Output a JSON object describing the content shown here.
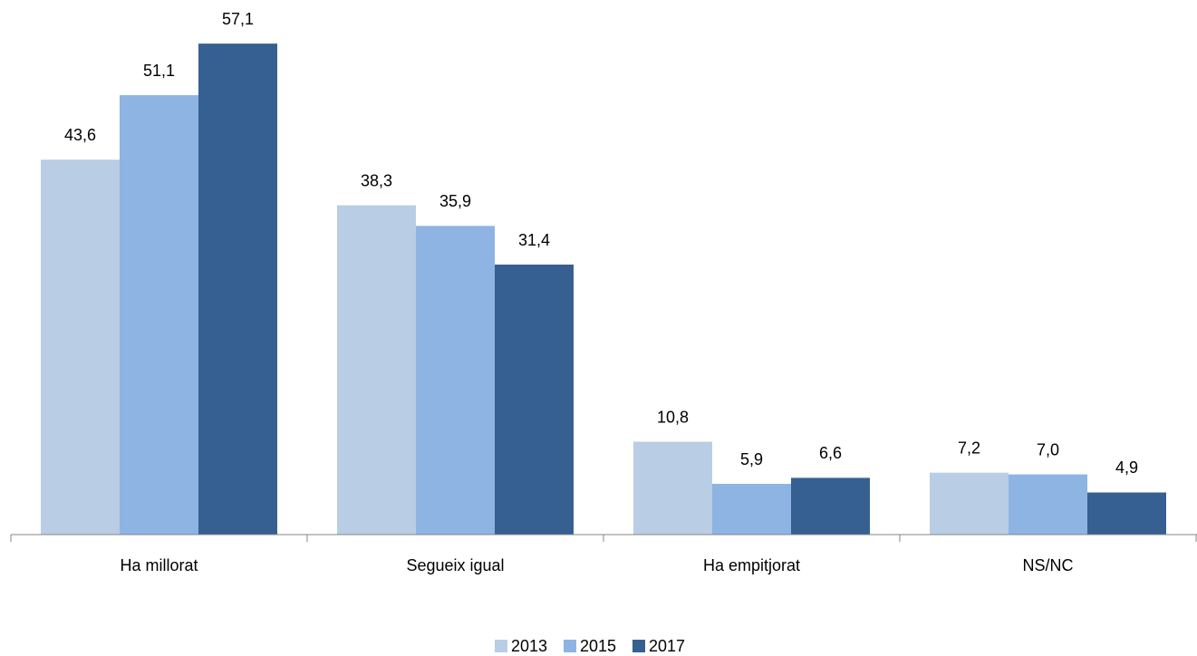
{
  "chart_data": {
    "type": "bar",
    "categories": [
      "Ha millorat",
      "Segueix igual",
      "Ha empitjorat",
      "NS/NC"
    ],
    "series": [
      {
        "name": "2013",
        "color": "#b9cde5",
        "values": [
          43.6,
          38.3,
          10.8,
          7.2
        ],
        "value_labels": [
          "43,6",
          "38,3",
          "10,8",
          "7,2"
        ]
      },
      {
        "name": "2015",
        "color": "#8eb4e3",
        "values": [
          51.1,
          35.9,
          5.9,
          7.0
        ],
        "value_labels": [
          "51,1",
          "35,9",
          "5,9",
          "7,0"
        ]
      },
      {
        "name": "2017",
        "color": "#376092",
        "values": [
          57.1,
          31.4,
          6.6,
          4.9
        ],
        "value_labels": [
          "57,1",
          "31,4",
          "6,6",
          "4,9"
        ]
      }
    ],
    "legend": "bottom"
  }
}
